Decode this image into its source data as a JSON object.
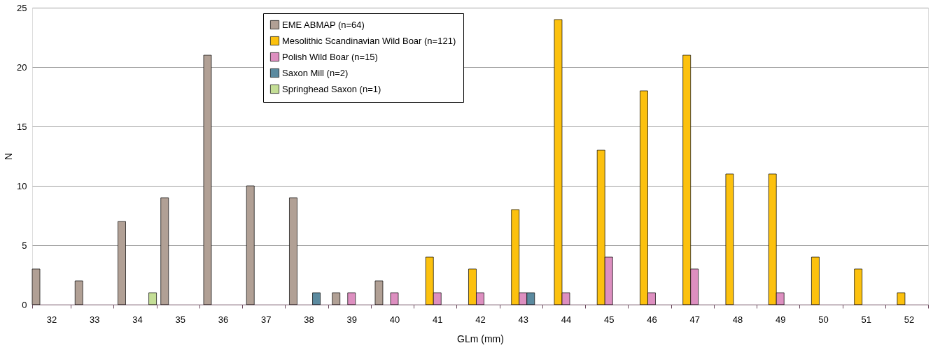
{
  "chart_data": {
    "type": "bar",
    "xlabel": "GLm (mm)",
    "ylabel": "N",
    "categories": [
      "32",
      "33",
      "34",
      "35",
      "36",
      "37",
      "38",
      "39",
      "40",
      "41",
      "42",
      "43",
      "44",
      "45",
      "46",
      "47",
      "48",
      "49",
      "50",
      "51",
      "52"
    ],
    "series": [
      {
        "name": "EME ABMAP (n=64)",
        "color": "#b1a095",
        "values": [
          3,
          2,
          7,
          9,
          21,
          10,
          9,
          1,
          2,
          null,
          null,
          null,
          null,
          null,
          null,
          null,
          null,
          null,
          null,
          null,
          null
        ]
      },
      {
        "name": "Mesolithic Scandinavian Wild Boar (n=121)",
        "color": "#fcc10e",
        "values": [
          null,
          null,
          null,
          null,
          null,
          null,
          null,
          null,
          null,
          4,
          3,
          8,
          24,
          13,
          18,
          21,
          11,
          11,
          4,
          3,
          1
        ]
      },
      {
        "name": "Polish Wild Boar (n=15)",
        "color": "#dd8fc0",
        "values": [
          null,
          null,
          null,
          null,
          null,
          null,
          null,
          1,
          1,
          1,
          1,
          1,
          1,
          4,
          1,
          3,
          null,
          1,
          null,
          null,
          null
        ]
      },
      {
        "name": "Saxon Mill (n=2)",
        "color": "#5b8a9f",
        "values": [
          null,
          null,
          null,
          null,
          null,
          null,
          1,
          null,
          null,
          null,
          null,
          1,
          null,
          null,
          null,
          null,
          null,
          null,
          null,
          null,
          null
        ]
      },
      {
        "name": "Springhead Saxon (n=1)",
        "color": "#c4de96",
        "values": [
          null,
          null,
          1,
          null,
          null,
          null,
          null,
          null,
          null,
          null,
          null,
          null,
          null,
          null,
          null,
          null,
          null,
          null,
          null,
          null,
          null
        ]
      }
    ],
    "ylim": [
      0,
      25
    ],
    "yticks": [
      0,
      5,
      10,
      15,
      20,
      25
    ],
    "grid": "y",
    "legend": "top"
  }
}
